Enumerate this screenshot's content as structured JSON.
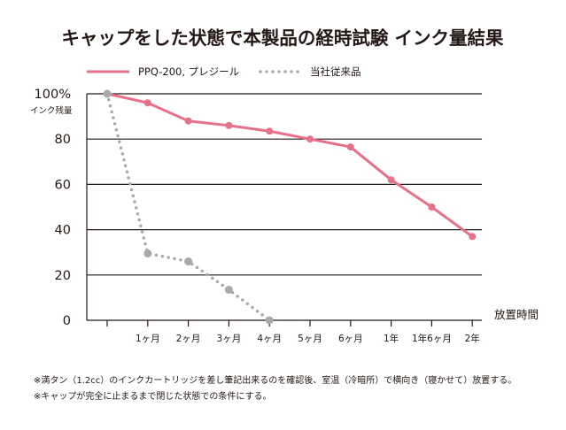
{
  "chart_data": {
    "type": "line",
    "title": "キャップをした状態で本製品の経時試験 インク量結果",
    "ylabel": "インク残量",
    "xlabel": "放置時間",
    "ylim": [
      0,
      100
    ],
    "yticks": [
      "100%",
      "80",
      "60",
      "40",
      "20",
      "0"
    ],
    "x_categories": [
      "",
      "1ヶ月",
      "2ヶ月",
      "3ヶ月",
      "4ヶ月",
      "5ヶ月",
      "6ヶ月",
      "1年",
      "1年6ヶ月",
      "2年"
    ],
    "grid": true,
    "legend_position": "top-left",
    "series": [
      {
        "name": "PPQ-200, プレジール",
        "color": "#e8718a",
        "style": "solid",
        "points": [
          {
            "x": 0,
            "y": 100
          },
          {
            "x": 1,
            "y": 96
          },
          {
            "x": 2,
            "y": 88
          },
          {
            "x": 3,
            "y": 86
          },
          {
            "x": 4,
            "y": 83.5
          },
          {
            "x": 5,
            "y": 80
          },
          {
            "x": 6,
            "y": 76.5
          },
          {
            "x": 7,
            "y": 62
          },
          {
            "x": 8,
            "y": 50
          },
          {
            "x": 9,
            "y": 37
          }
        ]
      },
      {
        "name": "当社従来品",
        "color": "#a9a9a9",
        "style": "dotted",
        "points": [
          {
            "x": 0,
            "y": 100
          },
          {
            "x": 1,
            "y": 29.5
          },
          {
            "x": 2,
            "y": 26
          },
          {
            "x": 3,
            "y": 13.5
          },
          {
            "x": 4,
            "y": 0
          }
        ]
      }
    ],
    "notes": [
      "※満タン（1.2cc）のインクカートリッジを差し筆記出来るのを確認後、室温（冷暗所）で横向き（寝かせて）放置する。",
      "※キャップが完全に止まるまで閉じた状態での条件にする。"
    ]
  }
}
